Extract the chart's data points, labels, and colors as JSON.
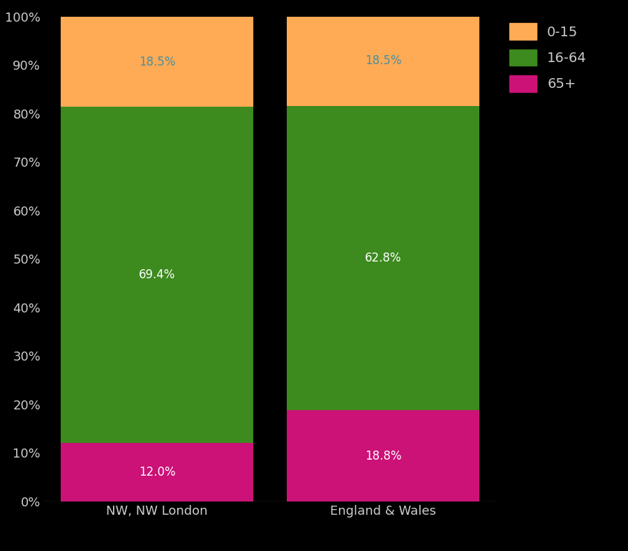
{
  "categories": [
    "NW, NW London",
    "England & Wales"
  ],
  "segments": {
    "65+": [
      12.0,
      18.8
    ],
    "16-64": [
      69.4,
      62.8
    ],
    "0-15": [
      18.5,
      18.5
    ]
  },
  "colors": {
    "65+": "#CC1177",
    "16-64": "#3D8A1E",
    "0-15": "#FFAA55"
  },
  "background_color": "#000000",
  "text_color": "#CCCCCC",
  "bar_width": 0.85,
  "ylim": [
    0,
    100
  ],
  "ytick_labels": [
    "0%",
    "10%",
    "20%",
    "30%",
    "40%",
    "50%",
    "60%",
    "70%",
    "80%",
    "90%",
    "100%"
  ],
  "ytick_values": [
    0,
    10,
    20,
    30,
    40,
    50,
    60,
    70,
    80,
    90,
    100
  ],
  "legend_order": [
    "0-15",
    "16-64",
    "65+"
  ],
  "legend_fontsize": 14,
  "tick_fontsize": 13,
  "label_fontsize": 13,
  "annotation_fontsize": 12,
  "annotation_color_dark": "#4a90a0",
  "annotation_color_light": "white"
}
